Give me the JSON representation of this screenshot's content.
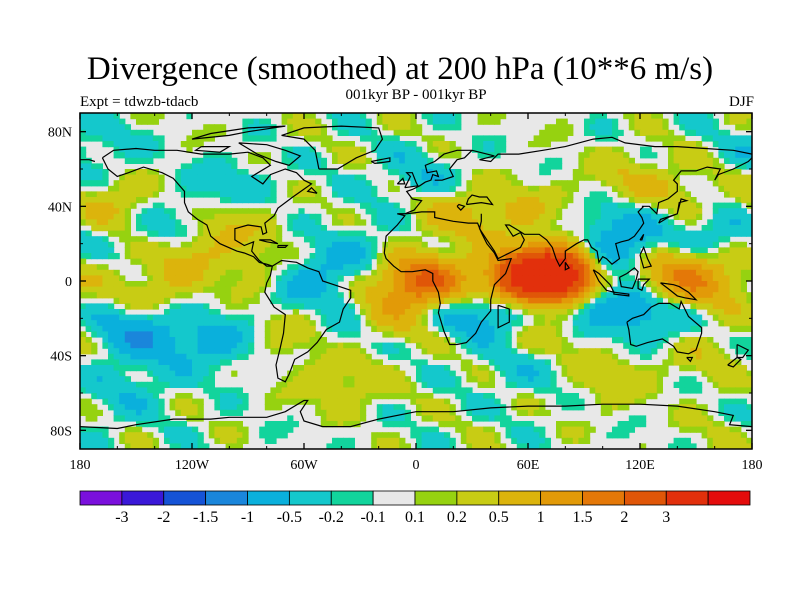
{
  "title": "Divergence (smoothed) at 200 hPa (10**6 m/s)",
  "subtitle": "001kyr BP - 001kyr BP",
  "experiment_label": "Expt = tdwzb-tdacb",
  "season_label": "DJF",
  "chart_data": {
    "type": "heatmap",
    "map_projection": "cylindrical-equidistant",
    "variable": "Divergence (smoothed) at 200 hPa",
    "units": "10**6 m/s",
    "x_range": [
      -180,
      180
    ],
    "y_range": [
      -90,
      90
    ],
    "x_ticks": [
      {
        "value": -180,
        "label": "180"
      },
      {
        "value": -120,
        "label": "120W"
      },
      {
        "value": -60,
        "label": "60W"
      },
      {
        "value": 0,
        "label": "0"
      },
      {
        "value": 60,
        "label": "60E"
      },
      {
        "value": 120,
        "label": "120E"
      },
      {
        "value": 180,
        "label": "180"
      }
    ],
    "y_ticks": [
      {
        "value": 80,
        "label": "80N"
      },
      {
        "value": 40,
        "label": "40N"
      },
      {
        "value": 0,
        "label": "0"
      },
      {
        "value": -40,
        "label": "40S"
      },
      {
        "value": -80,
        "label": "80S"
      }
    ],
    "colorbar": {
      "colors": [
        "#7a10dc",
        "#3a18d8",
        "#1553d6",
        "#1a86db",
        "#0ab0dc",
        "#14c8cc",
        "#12d49c",
        "#e8e8e8",
        "#96d210",
        "#c8cc14",
        "#dcb40c",
        "#e29a08",
        "#e47808",
        "#e05608",
        "#e2300c",
        "#e40c0c"
      ],
      "labels": [
        "-3",
        "-2",
        "-1.5",
        "-1",
        "-0.5",
        "-0.2",
        "-0.1",
        "0.1",
        "0.2",
        "0.5",
        "1",
        "1.5",
        "2",
        "3"
      ]
    },
    "fields": [
      {
        "lon": 78,
        "lat": 4,
        "value": 3.2
      },
      {
        "lon": 65,
        "lat": 2,
        "value": 2.2
      },
      {
        "lon": 55,
        "lat": 0,
        "value": 1.2
      },
      {
        "lon": 140,
        "lat": 3,
        "value": 1.3
      },
      {
        "lon": 160,
        "lat": -2,
        "value": 0.6
      },
      {
        "lon": 8,
        "lat": -2,
        "value": 1.6
      },
      {
        "lon": -5,
        "lat": 2,
        "value": 0.8
      },
      {
        "lon": -15,
        "lat": -20,
        "value": 0.6
      },
      {
        "lon": -62,
        "lat": -28,
        "value": 0.5
      },
      {
        "lon": -80,
        "lat": 5,
        "value": 0.5
      },
      {
        "lon": -125,
        "lat": 15,
        "value": 0.6
      },
      {
        "lon": -160,
        "lat": 40,
        "value": 0.6
      },
      {
        "lon": -140,
        "lat": -5,
        "value": 0.45
      },
      {
        "lon": -100,
        "lat": 30,
        "value": 0.5
      },
      {
        "lon": 20,
        "lat": 35,
        "value": 0.6
      },
      {
        "lon": 55,
        "lat": 38,
        "value": 0.5
      },
      {
        "lon": 115,
        "lat": 55,
        "value": 0.45
      },
      {
        "lon": 140,
        "lat": 45,
        "value": 0.4
      },
      {
        "lon": -40,
        "lat": -55,
        "value": 0.45
      },
      {
        "lon": 70,
        "lat": -32,
        "value": 0.5
      },
      {
        "lon": 105,
        "lat": -52,
        "value": 0.4
      },
      {
        "lon": 160,
        "lat": -40,
        "value": 0.35
      },
      {
        "lon": -150,
        "lat": -28,
        "value": -0.9
      },
      {
        "lon": -110,
        "lat": -32,
        "value": -0.7
      },
      {
        "lon": -135,
        "lat": 28,
        "value": -0.6
      },
      {
        "lon": -60,
        "lat": 0,
        "value": -0.8
      },
      {
        "lon": -40,
        "lat": -25,
        "value": -0.5
      },
      {
        "lon": -30,
        "lat": 15,
        "value": -0.5
      },
      {
        "lon": 20,
        "lat": -15,
        "value": -0.6
      },
      {
        "lon": 45,
        "lat": -15,
        "value": -0.8
      },
      {
        "lon": 100,
        "lat": 12,
        "value": -1.1
      },
      {
        "lon": 95,
        "lat": -12,
        "value": -0.9
      },
      {
        "lon": 125,
        "lat": -18,
        "value": -0.7
      },
      {
        "lon": 115,
        "lat": 30,
        "value": -0.6
      },
      {
        "lon": 160,
        "lat": 25,
        "value": -0.5
      },
      {
        "lon": -100,
        "lat": 50,
        "value": -0.4
      },
      {
        "lon": 0,
        "lat": 55,
        "value": -0.4
      },
      {
        "lon": 60,
        "lat": -45,
        "value": -0.45
      },
      {
        "lon": -150,
        "lat": -55,
        "value": -0.35
      },
      {
        "lon": -170,
        "lat": 72,
        "value": -0.35
      },
      {
        "lon": -175,
        "lat": -75,
        "value": -0.3
      },
      {
        "lon": 170,
        "lat": -78,
        "value": 0.3
      }
    ]
  }
}
